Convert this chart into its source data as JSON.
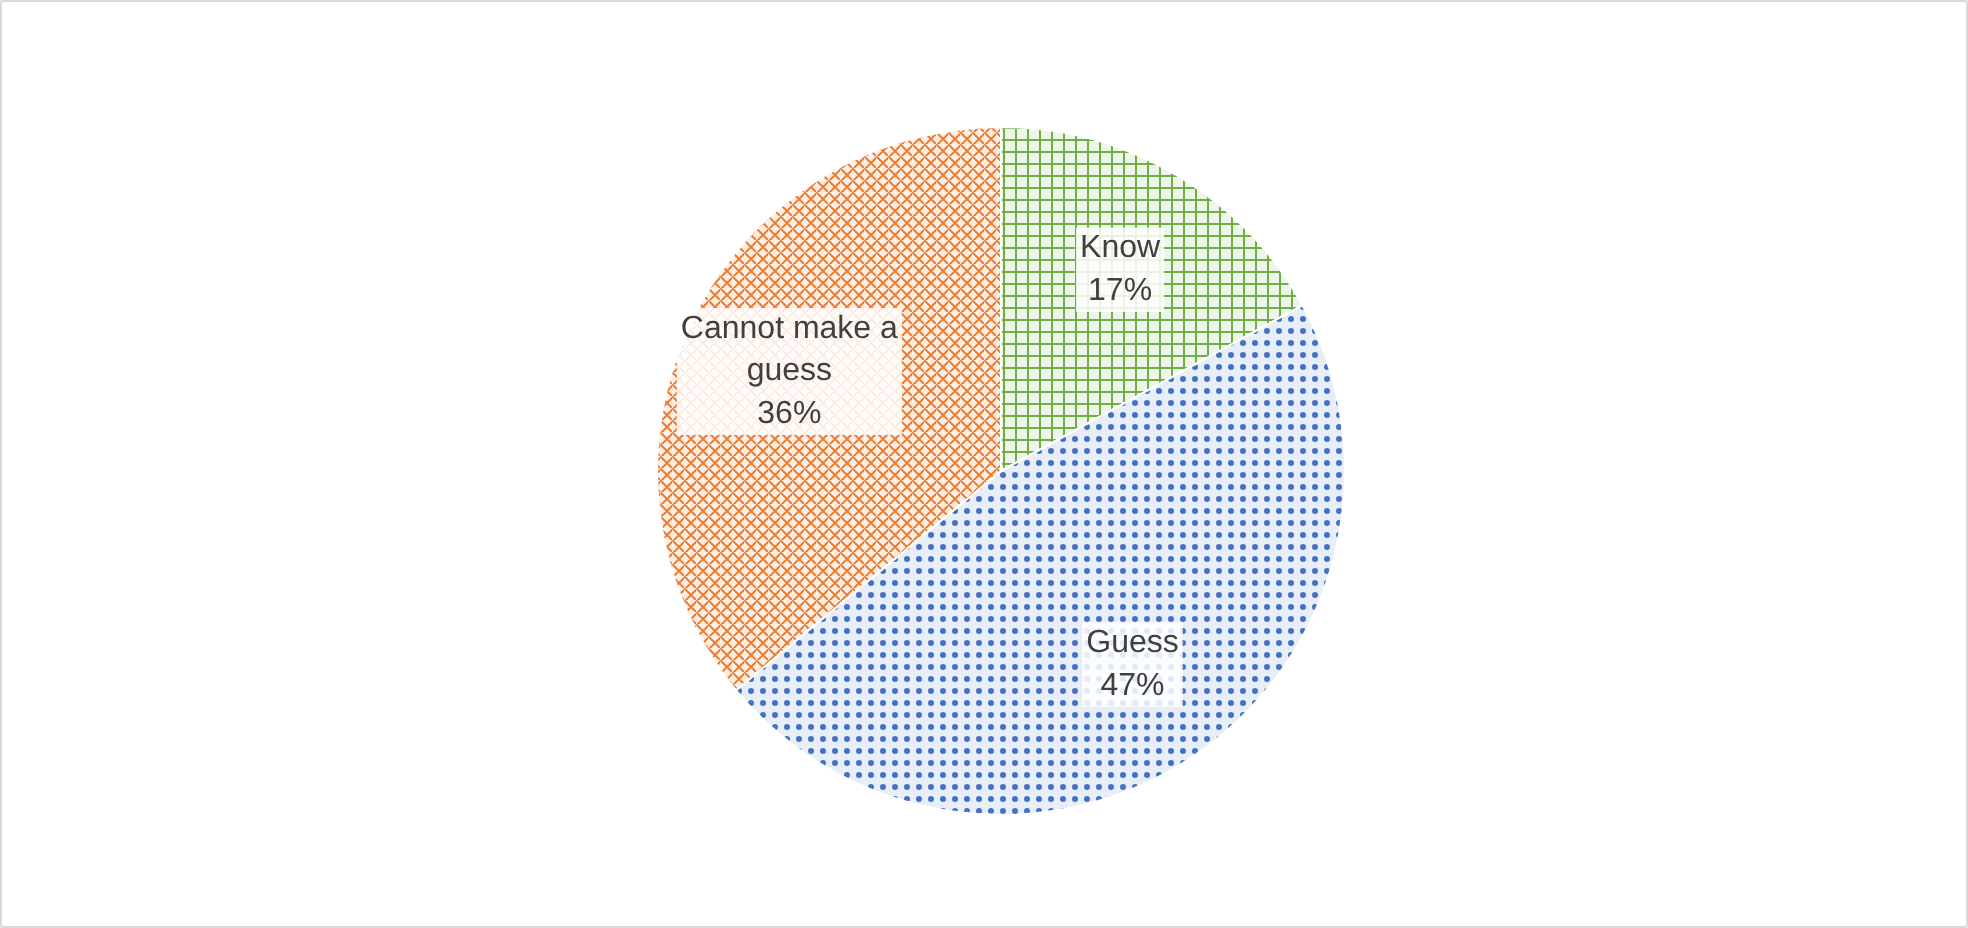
{
  "chart_data": {
    "type": "pie",
    "categories": [
      "Know",
      "Guess",
      "Cannot make a guess"
    ],
    "values": [
      17,
      47,
      36
    ],
    "colors": [
      "#70ad47",
      "#4472c4",
      "#ed7d31"
    ],
    "value_labels": [
      "17%",
      "47%",
      "36%"
    ]
  }
}
